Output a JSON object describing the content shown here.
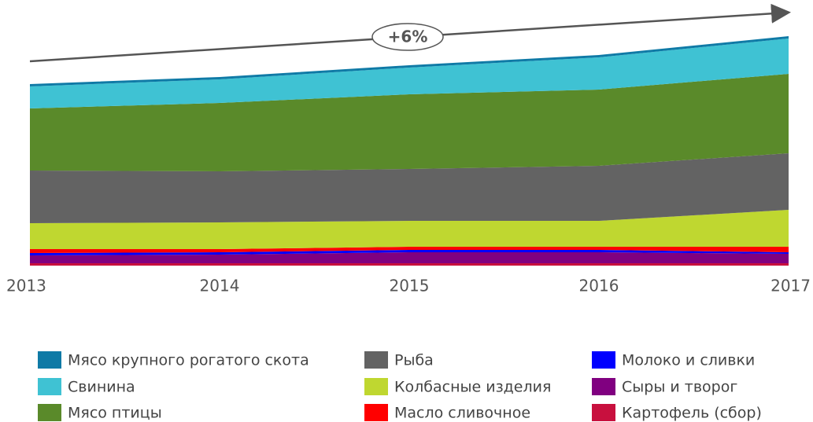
{
  "chart_data": {
    "type": "stacked_area",
    "annotation": "+6%",
    "categories": [
      "2013",
      "2014",
      "2015",
      "2016",
      "2017"
    ],
    "ylim": [
      0,
      300
    ],
    "series": [
      {
        "name": "Мясо крупного рогатого скота",
        "color": "#0f7aa6",
        "values": [
          3,
          3,
          3,
          3,
          3
        ]
      },
      {
        "name": "Свинина",
        "color": "#3fc2d3",
        "values": [
          28,
          30,
          34,
          41,
          45
        ]
      },
      {
        "name": "Мясо птицы",
        "color": "#5a8a2a",
        "values": [
          79,
          87,
          95,
          97,
          101
        ]
      },
      {
        "name": "Рыба",
        "color": "#636363",
        "values": [
          67,
          65,
          66,
          70,
          72
        ]
      },
      {
        "name": "Колбасные изделия",
        "color": "#bfd730",
        "values": [
          33,
          34,
          33,
          33,
          47
        ]
      },
      {
        "name": "Масло сливочное",
        "color": "#ff0000",
        "values": [
          5,
          4,
          4,
          4,
          7
        ]
      },
      {
        "name": "Молоко и сливки",
        "color": "#0000ff",
        "values": [
          3,
          3,
          3,
          3,
          2
        ]
      },
      {
        "name": "Сыры и творог",
        "color": "#800080",
        "values": [
          10,
          11,
          14,
          14,
          12
        ]
      },
      {
        "name": "Картофель (сбор)",
        "color": "#c8103e",
        "values": [
          3,
          3,
          3,
          3,
          3
        ]
      }
    ]
  }
}
